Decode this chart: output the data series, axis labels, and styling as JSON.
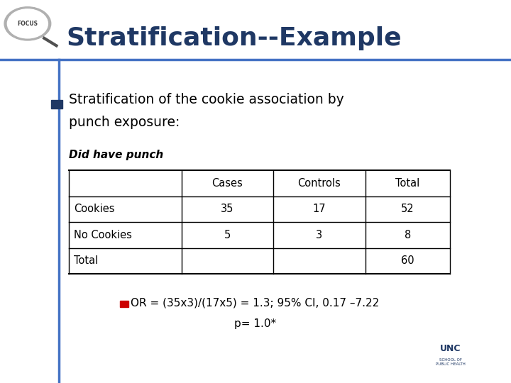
{
  "title": "Stratification--Example",
  "title_color": "#1F3864",
  "bullet_text_line1": "Stratification of the cookie association by",
  "bullet_text_line2": "punch exposure:",
  "table_label": "Did have punch",
  "col_headers": [
    "",
    "Cases",
    "Controls",
    "Total"
  ],
  "rows": [
    [
      "Cookies",
      "35",
      "17",
      "52"
    ],
    [
      "No Cookies",
      "5",
      "3",
      "8"
    ],
    [
      "Total",
      "",
      "",
      "60"
    ]
  ],
  "or_text_line1": "OR = (35x3)/(17x5) = 1.3; 95% CI, 0.17 –7.22",
  "or_text_line2": "p= 1.0*",
  "bullet_color": "#1F3864",
  "or_bullet_color": "#CC0000",
  "background_color": "#FFFFFF",
  "header_bar_color": "#4472C4",
  "thin_bar_color": "#4472C4",
  "table_border_color": "#000000",
  "text_color": "#000000",
  "focus_circle_color": "#808080"
}
